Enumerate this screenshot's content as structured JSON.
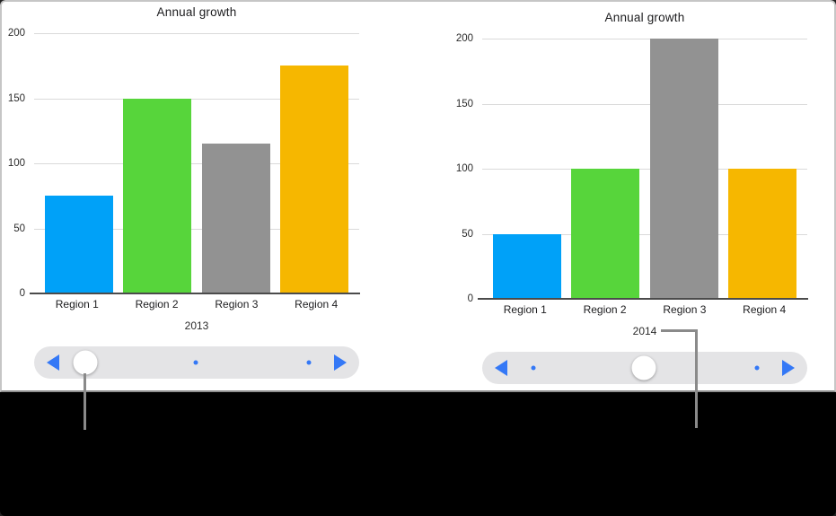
{
  "chart_data": [
    {
      "type": "bar",
      "title": "Annual growth",
      "categories": [
        "Region 1",
        "Region 2",
        "Region 3",
        "Region 4"
      ],
      "values": [
        75,
        150,
        115,
        175
      ],
      "xlabel": "2013",
      "ylabel": "",
      "ylim": [
        0,
        200
      ],
      "yticks": [
        0,
        50,
        100,
        150,
        200
      ],
      "grid": true,
      "legend_position": "none",
      "bar_colors": [
        "#00A1F8",
        "#57D53B",
        "#929292",
        "#F6B700"
      ],
      "pager": {
        "position_count": 3,
        "active_index": 0,
        "prev_icon": "left-filled-triangle",
        "next_icon": "right-filled-triangle"
      }
    },
    {
      "type": "bar",
      "title": "Annual growth",
      "categories": [
        "Region 1",
        "Region 2",
        "Region 3",
        "Region 4"
      ],
      "values": [
        50,
        100,
        200,
        100
      ],
      "xlabel": "2014",
      "ylabel": "",
      "ylim": [
        0,
        200
      ],
      "yticks": [
        0,
        50,
        100,
        150,
        200
      ],
      "grid": true,
      "legend_position": "none",
      "bar_colors": [
        "#00A1F8",
        "#57D53B",
        "#929292",
        "#F6B700"
      ],
      "pager": {
        "position_count": 3,
        "active_index": 1,
        "prev_icon": "left-filled-triangle",
        "next_icon": "right-filled-triangle"
      }
    }
  ],
  "colors": {
    "accent_blue": "#3478F6",
    "slider_track": "#E4E4E6",
    "knob_white": "#FFFFFF",
    "gridline": "#DADADA",
    "axis_line": "#4B4B4B",
    "callout_gray": "#8A8A8A",
    "panel_bg": "#FFFFFF",
    "backdrop": "#000000"
  }
}
